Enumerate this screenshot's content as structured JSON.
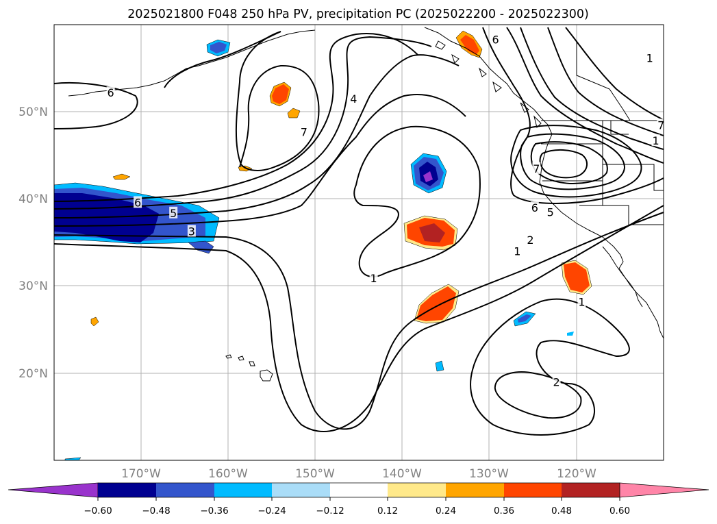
{
  "map": {
    "title": "2025021800 F048 250 hPa PV, precipitation PC (2025022200 - 2025022300)",
    "lon_range": [
      -180,
      -110
    ],
    "lat_range": [
      10,
      60
    ],
    "latitude_labels": [
      {
        "value": 20,
        "text": "20°N"
      },
      {
        "value": 30,
        "text": "30°N"
      },
      {
        "value": 40,
        "text": "40°N"
      },
      {
        "value": 50,
        "text": "50°N"
      }
    ],
    "longitude_labels": [
      {
        "value": -170,
        "text": "170°W"
      },
      {
        "value": -160,
        "text": "160°W"
      },
      {
        "value": -150,
        "text": "150°W"
      },
      {
        "value": -140,
        "text": "140°W"
      },
      {
        "value": -130,
        "text": "130°W"
      },
      {
        "value": -120,
        "text": "120°W"
      }
    ],
    "grid": true,
    "contour_labels": [
      {
        "text": "6",
        "lon": -173.5,
        "lat": 52.2
      },
      {
        "text": "4",
        "lon": -145.6,
        "lat": 51.5
      },
      {
        "text": "6",
        "lon": -129.3,
        "lat": 58.3
      },
      {
        "text": "1",
        "lon": -111.6,
        "lat": 56.2
      },
      {
        "text": "7",
        "lon": -151.3,
        "lat": 47.7
      },
      {
        "text": "7",
        "lon": -124.6,
        "lat": 43.5
      },
      {
        "text": "7",
        "lon": -110.3,
        "lat": 48.5
      },
      {
        "text": "1",
        "lon": -110.9,
        "lat": 46.7
      },
      {
        "text": "6",
        "lon": -124.8,
        "lat": 39.0
      },
      {
        "text": "5",
        "lon": -123.0,
        "lat": 38.5
      },
      {
        "text": "2",
        "lon": -125.3,
        "lat": 35.3
      },
      {
        "text": "1",
        "lon": -126.8,
        "lat": 34.0
      },
      {
        "text": "6",
        "lon": -170.4,
        "lat": 39.6
      },
      {
        "text": "5",
        "lon": -166.3,
        "lat": 38.4
      },
      {
        "text": "3",
        "lon": -164.2,
        "lat": 36.3
      },
      {
        "text": "1",
        "lon": -143.3,
        "lat": 30.9
      },
      {
        "text": "1",
        "lon": -119.4,
        "lat": 28.2
      },
      {
        "text": "2",
        "lon": -122.3,
        "lat": 19.0
      }
    ]
  },
  "colorbar": {
    "tick_labels": [
      "−0.60",
      "−0.48",
      "−0.36",
      "−0.24",
      "−0.12",
      "0.12",
      "0.24",
      "0.36",
      "0.48",
      "0.60"
    ],
    "colors": [
      "#9933cc",
      "#000090",
      "#3355cc",
      "#00bbff",
      "#aaddf8",
      "#ffffff",
      "#ffe98a",
      "#ffa500",
      "#ff4500",
      "#b22222",
      "#ff85a8"
    ]
  }
}
